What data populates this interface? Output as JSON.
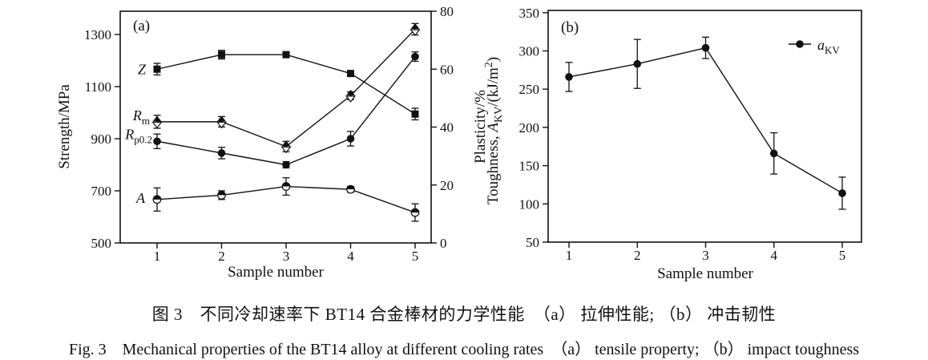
{
  "figure": {
    "caption_zh": "图 3　不同冷却速率下 BT14 合金棒材的力学性能　（a） 拉伸性能; （b） 冲击韧性",
    "caption_en": "Fig. 3　Mechanical properties of the BT14 alloy at different cooling rates　（a） tensile property; （b） impact toughness"
  },
  "colors": {
    "ink": "#111111",
    "background": "#ffffff"
  },
  "chart_data": [
    {
      "id": "a",
      "type": "line",
      "panel_label": "(a)",
      "xlabel": "Sample number",
      "ylabel_left": "Strength/MPa",
      "ylabel_right": "Plasticity/%",
      "x": [
        1,
        2,
        3,
        4,
        5
      ],
      "xticks": [
        1,
        2,
        3,
        4,
        5
      ],
      "xlim": [
        0.45,
        5.3
      ],
      "yticks_left": [
        500,
        700,
        900,
        1100,
        1300
      ],
      "ylim_left": [
        500,
        1390
      ],
      "yticks_right": [
        0,
        20,
        40,
        60,
        80
      ],
      "ylim_right": [
        0,
        80
      ],
      "grid": false,
      "legend_position": "none",
      "series": [
        {
          "name": "Z",
          "axis": "right",
          "unit": "%",
          "marker": "square-filled",
          "label_segments": [
            {
              "t": "Z",
              "i": true
            }
          ],
          "values": [
            60,
            65,
            65,
            58.5,
            44.5
          ],
          "errors": [
            2,
            1.5,
            1,
            1,
            2
          ]
        },
        {
          "name": "Rm",
          "axis": "left",
          "unit": "MPa",
          "marker": "hourglass",
          "label_segments": [
            {
              "t": "R",
              "i": true
            },
            {
              "t": "m",
              "sub": true
            }
          ],
          "values": [
            965,
            965,
            870,
            1065,
            1320
          ],
          "errors": [
            25,
            20,
            20,
            15,
            22
          ]
        },
        {
          "name": "Rp0.2",
          "axis": "left",
          "unit": "MPa",
          "marker": "circle-filled",
          "label_segments": [
            {
              "t": "R",
              "i": true
            },
            {
              "t": "p0.2",
              "sub": true
            }
          ],
          "values": [
            890,
            845,
            800,
            900,
            1215
          ],
          "errors": [
            28,
            22,
            12,
            28,
            18
          ]
        },
        {
          "name": "A",
          "axis": "right",
          "unit": "%",
          "marker": "circle-half",
          "label_segments": [
            {
              "t": "A",
              "i": true
            }
          ],
          "values": [
            15,
            16.5,
            19.5,
            18.5,
            10.5
          ],
          "errors": [
            4,
            1.5,
            3,
            1,
            3
          ]
        }
      ]
    },
    {
      "id": "b",
      "type": "line",
      "panel_label": "(b)",
      "xlabel": "Sample number",
      "ylabel_left_segments": [
        {
          "t": "Toughness, "
        },
        {
          "t": "A",
          "i": true
        },
        {
          "t": "KV",
          "sub": true
        },
        {
          "t": "/(kJ/m"
        },
        {
          "t": "2",
          "sup": true
        },
        {
          "t": ")"
        }
      ],
      "x": [
        1,
        2,
        3,
        4,
        5
      ],
      "xticks": [
        1,
        2,
        3,
        4,
        5
      ],
      "xlim": [
        0.7,
        5.3
      ],
      "yticks_left": [
        50,
        100,
        150,
        200,
        250,
        300,
        350
      ],
      "ylim_left": [
        50,
        353
      ],
      "grid": false,
      "legend": {
        "position": "top-right",
        "marker": "circle-filled",
        "label_segments": [
          {
            "t": "a",
            "i": true
          },
          {
            "t": "KV",
            "sub": true
          }
        ]
      },
      "series": [
        {
          "name": "aKV",
          "axis": "left",
          "unit": "kJ/m2",
          "marker": "circle-filled",
          "values": [
            266,
            283,
            304,
            166,
            114
          ],
          "errors": [
            19,
            32,
            14,
            27,
            21
          ]
        }
      ]
    }
  ]
}
